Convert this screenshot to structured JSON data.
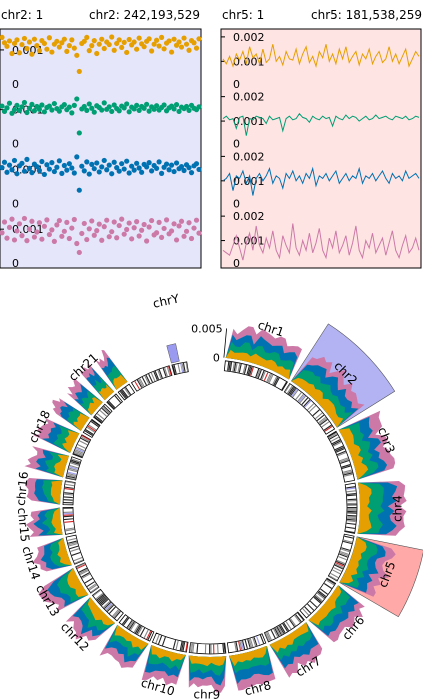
{
  "colors": {
    "series1": "#e69f00",
    "series2": "#009e73",
    "series3": "#0072b2",
    "series4": "#cc79a7",
    "left_panel_bg": "#e6e6fa",
    "right_panel_bg": "#ffe4e4",
    "chr2_highlight": "#9a9af0",
    "chr5_highlight": "#ff8c8c"
  },
  "chart_data": [
    {
      "type": "scatter",
      "panel": "chr2 zoom",
      "range_labels": {
        "start": "chr2: 1",
        "end": "chr2: 242,193,529"
      },
      "x_range": [
        1,
        242193529
      ],
      "tracks": [
        {
          "ylim": [
            0,
            0.0015
          ],
          "ticks": [
            {
              "value": 0.001,
              "label": "0.001"
            }
          ],
          "values": [
            0.00135,
            0.0012,
            0.0011,
            0.00125,
            0.0009,
            0.00118,
            0.00128,
            0.00092,
            0.00115,
            0.00132,
            0.00104,
            0.00122,
            0.00088,
            0.0013,
            0.00112,
            0.00098,
            0.00126,
            0.00118,
            0.00102,
            0.00134,
            0.00094,
            0.00116,
            0.00124,
            0.00108,
            0.0012,
            0.0013,
            0.00096,
            0.00112,
            0.00128,
            0.00105,
            0.00085,
            0.0004,
            0.00118,
            0.00124,
            0.00135,
            0.00098,
            0.00112,
            0.00126,
            0.0009,
            0.00116,
            0.0013,
            0.00104,
            0.00122,
            0.00115,
            0.00136,
            0.00099,
            0.00118,
            0.00128,
            0.00107,
            0.00121,
            0.00093,
            0.00129,
            0.00114,
            0.00122,
            0.00102,
            0.00133,
            0.00117,
            0.00109,
            0.00124,
            0.00131,
            0.00097,
            0.00116,
            0.00127,
            0.00111,
            0.00135,
            0.00103,
            0.00119,
            0.00125,
            0.00094,
            0.0013,
            0.00113,
            0.00122,
            0.00108,
            0.00133,
            0.00116,
            0.00099,
            0.00126,
            0.0012,
            0.00105,
            0.00131
          ]
        },
        {
          "ylim": [
            0,
            0.0015
          ],
          "ticks": [
            {
              "value": 0.001,
              "label": "0.001"
            }
          ],
          "values": [
            0.0011,
            0.00095,
            0.00105,
            0.00118,
            0.0009,
            0.001,
            0.00112,
            0.00098,
            0.00108,
            0.0012,
            0.00092,
            0.00104,
            0.00115,
            0.00097,
            0.00109,
            0.00101,
            0.00113,
            0.00094,
            0.00106,
            0.0011,
            0.00099,
            0.00117,
            0.00103,
            0.00096,
            0.00108,
            0.00114,
            0.001,
            0.00107,
            0.00091,
            0.00112,
            0.0013,
            0.00035,
            0.00102,
            0.00109,
            0.00098,
            0.00116,
            0.00104,
            0.00093,
            0.00111,
            0.00106,
            0.00099,
            0.00119,
            0.00101,
            0.00108,
            0.00095,
            0.00113,
            0.00103,
            0.00097,
            0.0011,
            0.00105,
            0.00116,
            0.00094,
            0.00107,
            0.00102,
            0.00112,
            0.00098,
            0.00109,
            0.00104,
            0.00115,
            0.00096,
            0.00108,
            0.00101,
            0.00111,
            0.00099,
            0.00106,
            0.00113,
            0.00097,
            0.00105,
            0.0011,
            0.00102,
            0.00114,
            0.00095,
            0.00107,
            0.00103,
            0.00109,
            0.00098,
            0.00112,
            0.00104,
            0.001,
            0.00108
          ]
        },
        {
          "ylim": [
            0,
            0.0015
          ],
          "ticks": [
            {
              "value": 0.001,
              "label": "0.001"
            }
          ],
          "values": [
            0.00105,
            0.0012,
            0.00092,
            0.00112,
            0.00099,
            0.00125,
            0.00088,
            0.0011,
            0.00117,
            0.00095,
            0.00128,
            0.00103,
            0.00091,
            0.00115,
            0.00108,
            0.00097,
            0.00122,
            0.00086,
            0.00113,
            0.00101,
            0.00119,
            0.00094,
            0.00106,
            0.00124,
            0.00089,
            0.00111,
            0.00098,
            0.00116,
            0.00104,
            0.0009,
            0.00135,
            0.00042,
            0.00109,
            0.00096,
            0.00121,
            0.00087,
            0.00114,
            0.00102,
            0.00118,
            0.00093,
            0.00107,
            0.00125,
            0.00099,
            0.00112,
            0.00088,
            0.0012,
            0.00105,
            0.00095,
            0.00116,
            0.00101,
            0.00123,
            0.0009,
            0.00109,
            0.00098,
            0.00117,
            0.00104,
            0.00092,
            0.00114,
            0.00107,
            0.00119,
            0.00096,
            0.00111,
            0.00103,
            0.00121,
            0.00089,
            0.00106,
            0.00115,
            0.00099,
            0.00112,
            0.00094,
            0.00118,
            0.00102,
            0.00108,
            0.00097,
            0.00113,
            0.00105,
            0.00091,
            0.0011,
            0.00116,
            0.001
          ]
        },
        {
          "ylim": [
            0,
            0.0015
          ],
          "ticks": [
            {
              "value": 0.001,
              "label": "0.001"
            }
          ],
          "values": [
            0.0009,
            0.0012,
            0.00075,
            0.00105,
            0.00128,
            0.0007,
            0.00095,
            0.00115,
            0.00082,
            0.0013,
            0.00068,
            0.001,
            0.00122,
            0.00078,
            0.00092,
            0.00118,
            0.00072,
            0.00108,
            0.00126,
            0.00085,
            0.00098,
            0.00066,
            0.00112,
            0.00124,
            0.0008,
            0.00094,
            0.00119,
            0.00074,
            0.00103,
            0.00127,
            0.0006,
            0.00035,
            0.00088,
            0.00116,
            0.00071,
            0.00101,
            0.00123,
            0.00083,
            0.00096,
            0.00114,
            0.00069,
            0.00107,
            0.00125,
            0.00079,
            0.00093,
            0.0012,
            0.00076,
            0.0011,
            0.00128,
            0.00086,
            0.00099,
            0.00117,
            0.00073,
            0.00104,
            0.00121,
            0.00081,
            0.00097,
            0.00113,
            0.00067,
            0.00106,
            0.00124,
            0.00084,
            0.0009,
            0.00119,
            0.00077,
            0.00102,
            0.00126,
            0.00087,
            0.00095,
            0.00115,
            0.0007,
            0.00109,
            0.00122,
            0.0008,
            0.00094,
            0.00118,
            0.00074,
            0.00103,
            0.00125,
            0.00089
          ]
        }
      ],
      "zero_label": "0"
    },
    {
      "type": "line",
      "panel": "chr5 zoom",
      "range_labels": {
        "start": "chr5: 1",
        "end": "chr5: 181,538,259"
      },
      "x_range": [
        1,
        181538259
      ],
      "tracks": [
        {
          "ylim": [
            0,
            0.0022
          ],
          "ticks": [
            {
              "value": 0.001,
              "label": "0.001"
            },
            {
              "value": 0.002,
              "label": "0.002"
            }
          ],
          "values": [
            0.0011,
            0.0009,
            0.0012,
            0.0008,
            0.0013,
            0.00105,
            0.0014,
            0.0009,
            0.0016,
            0.00115,
            0.0013,
            0.0009,
            0.0015,
            0.00095,
            0.0011,
            0.0017,
            0.001,
            0.0012,
            0.00085,
            0.0014,
            0.0011,
            0.00105,
            0.0015,
            0.0009,
            0.0013,
            0.0016,
            0.00095,
            0.0012,
            0.0008,
            0.0014,
            0.00115,
            0.0017,
            0.001,
            0.0013,
            0.0009,
            0.0015,
            0.0011,
            0.0016,
            0.00095,
            0.0012,
            0.0014,
            0.00085,
            0.0013,
            0.0011,
            0.0015,
            0.0009,
            0.0012,
            0.0014,
            0.00095,
            0.0011,
            0.0016,
            0.001,
            0.0013,
            0.0009,
            0.0012,
            0.0015,
            0.0008,
            0.0011,
            0.0014,
            0.0012
          ]
        },
        {
          "ylim": [
            0,
            0.0022
          ],
          "ticks": [
            {
              "value": 0.001,
              "label": "0.001"
            },
            {
              "value": 0.002,
              "label": "0.002"
            }
          ],
          "values": [
            0.0011,
            0.0012,
            0.00105,
            0.0011,
            0.0007,
            0.00115,
            0.0012,
            0.0004,
            0.0011,
            0.00105,
            0.0012,
            0.00115,
            0.0011,
            0.0009,
            0.0012,
            0.00105,
            0.0011,
            0.00115,
            0.0006,
            0.0011,
            0.0012,
            0.00105,
            0.0011,
            0.0013,
            0.00115,
            0.0011,
            0.00095,
            0.0012,
            0.0011,
            0.00105,
            0.0012,
            0.0011,
            0.00115,
            0.0008,
            0.0012,
            0.0011,
            0.00105,
            0.00125,
            0.0011,
            0.0012,
            0.00115,
            0.001,
            0.0011,
            0.0012,
            0.00105,
            0.0011,
            0.00125,
            0.0011,
            0.00115,
            0.0012,
            0.0011,
            0.00105,
            0.0012,
            0.00115,
            0.0011,
            0.0012,
            0.00105,
            0.0011,
            0.0012,
            0.00115
          ]
        },
        {
          "ylim": [
            0,
            0.0022
          ],
          "ticks": [
            {
              "value": 0.001,
              "label": "0.001"
            },
            {
              "value": 0.002,
              "label": "0.002"
            }
          ],
          "values": [
            0.001,
            0.0011,
            0.0013,
            0.0006,
            0.0012,
            0.0011,
            0.0014,
            0.0009,
            0.0012,
            0.0004,
            0.0011,
            0.0013,
            0.001,
            0.0012,
            0.0015,
            0.0009,
            0.0012,
            0.0011,
            0.0007,
            0.0013,
            0.0011,
            0.0014,
            0.001,
            0.0012,
            0.0009,
            0.0013,
            0.0011,
            0.0015,
            0.0008,
            0.0012,
            0.0011,
            0.0013,
            0.001,
            0.0012,
            0.0014,
            0.0009,
            0.0011,
            0.0013,
            0.001,
            0.0012,
            0.0011,
            0.0015,
            0.0009,
            0.0012,
            0.0011,
            0.0013,
            0.001,
            0.0012,
            0.0014,
            0.0011,
            0.0009,
            0.0013,
            0.0011,
            0.0012,
            0.001,
            0.0014,
            0.0011,
            0.0012,
            0.0013,
            0.0011
          ]
        },
        {
          "ylim": [
            0,
            0.0022
          ],
          "ticks": [
            {
              "value": 0.001,
              "label": "0.001"
            },
            {
              "value": 0.002,
              "label": "0.002"
            }
          ],
          "values": [
            0.0006,
            0.0005,
            0.0004,
            0.0008,
            0.0012,
            0.0007,
            0.0002,
            0.0009,
            0.0013,
            0.0006,
            0.0016,
            0.0008,
            0.0005,
            0.0011,
            0.0007,
            0.0014,
            0.0006,
            0.0003,
            0.0012,
            0.0008,
            0.0005,
            0.0017,
            0.0007,
            0.0004,
            0.001,
            0.0006,
            0.0013,
            0.0005,
            0.0009,
            0.0015,
            0.0006,
            0.0003,
            0.0011,
            0.0007,
            0.0014,
            0.0005,
            0.0008,
            0.0012,
            0.0004,
            0.0009,
            0.0016,
            0.0006,
            0.0003,
            0.001,
            0.0007,
            0.0013,
            0.0005,
            0.0008,
            0.0011,
            0.0004,
            0.0009,
            0.0014,
            0.0006,
            0.0003,
            0.0008,
            0.0012,
            0.0005,
            0.0007,
            0.0011,
            0.0006
          ]
        }
      ],
      "zero_label": "0"
    },
    {
      "type": "area",
      "panel": "circos genome overview",
      "scale_ticks": [
        {
          "value": 0.005,
          "label": "0.005"
        },
        {
          "value": 0,
          "label": "0"
        }
      ],
      "ylim": [
        0,
        0.0075
      ],
      "highlighted": [
        "chr2",
        "chr5"
      ],
      "chromosomes": [
        {
          "name": "chr1",
          "label": "chr1",
          "length": 248956422,
          "level": 0.0028
        },
        {
          "name": "chr2",
          "label": "chr2",
          "length": 242193529,
          "level": 0.003
        },
        {
          "name": "chr3",
          "label": "chr3",
          "length": 198295559,
          "level": 0.0033
        },
        {
          "name": "chr4",
          "label": "chr4",
          "length": 190214555,
          "level": 0.0036
        },
        {
          "name": "chr5",
          "label": "chr5",
          "length": 181538259,
          "level": 0.0031
        },
        {
          "name": "chr6",
          "label": "chr6",
          "length": 170805979,
          "level": 0.0029
        },
        {
          "name": "chr7",
          "label": "chr7",
          "length": 159345973,
          "level": 0.0028
        },
        {
          "name": "chr8",
          "label": "chr8",
          "length": 145138636,
          "level": 0.003
        },
        {
          "name": "chr9",
          "label": "chr9",
          "length": 138394717,
          "level": 0.0026
        },
        {
          "name": "chr10",
          "label": "chr10",
          "length": 133797422,
          "level": 0.0027
        },
        {
          "name": "chr11",
          "label": "",
          "length": 135086622,
          "level": 0.0028
        },
        {
          "name": "chr12",
          "label": "chr12",
          "length": 133275309,
          "level": 0.0029
        },
        {
          "name": "chr13",
          "label": "chr13",
          "length": 114364328,
          "level": 0.003
        },
        {
          "name": "chr14",
          "label": "chr14",
          "length": 107043718,
          "level": 0.0027
        },
        {
          "name": "chr15",
          "label": "chr15",
          "length": 101991189,
          "level": 0.0026
        },
        {
          "name": "chr16",
          "label": "chr16",
          "length": 90338345,
          "level": 0.0028
        },
        {
          "name": "chr17",
          "label": "",
          "length": 83257441,
          "level": 0.003
        },
        {
          "name": "chr18",
          "label": "chr18",
          "length": 80373285,
          "level": 0.0032
        },
        {
          "name": "chr19",
          "label": "",
          "length": 58617616,
          "level": 0.0029
        },
        {
          "name": "chr20",
          "label": "",
          "length": 64444167,
          "level": 0.0028
        },
        {
          "name": "chr21",
          "label": "chr21",
          "length": 46709983,
          "level": 0.0033
        },
        {
          "name": "chr22",
          "label": "",
          "length": 50818468,
          "level": 0.003
        },
        {
          "name": "chrX",
          "label": "",
          "length": 156040895,
          "level": 0.0
        },
        {
          "name": "chrY",
          "label": "chrY",
          "length": 57227415,
          "level": 0.0
        }
      ]
    }
  ]
}
